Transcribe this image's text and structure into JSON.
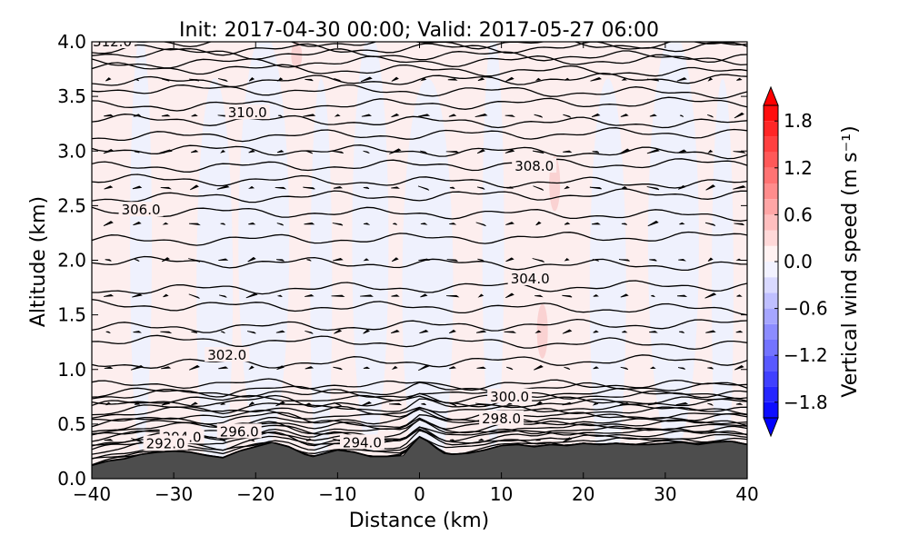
{
  "chart_data": {
    "type": "contour",
    "title": "Init: 2017-04-30 00:00; Valid: 2017-05-27 06:00",
    "xlabel": "Distance (km)",
    "ylabel": "Altitude (km)",
    "xlim": [
      -40,
      40
    ],
    "ylim": [
      0.0,
      4.0
    ],
    "x_ticks": [
      "−40",
      "−30",
      "−20",
      "−10",
      "0",
      "10",
      "20",
      "30",
      "40"
    ],
    "y_ticks": [
      "0.0",
      "0.5",
      "1.0",
      "1.5",
      "2.0",
      "2.5",
      "3.0",
      "3.5",
      "4.0"
    ],
    "colorbar": {
      "label": "Vertical wind speed (m s⁻¹)",
      "range": [
        -2.0,
        2.0
      ],
      "tick_values": [
        1.8,
        1.2,
        0.6,
        0.0,
        -0.6,
        -1.2,
        -1.8
      ],
      "tick_labels": [
        "1.8",
        "1.2",
        "0.6",
        "0.0",
        "−0.6",
        "−1.2",
        "−1.8"
      ],
      "colormap": "bwr",
      "extend": "both"
    },
    "terrain": {
      "color": "#4d4d4d",
      "x": [
        -40,
        -38,
        -36,
        -34,
        -32,
        -30,
        -28,
        -26,
        -24,
        -22,
        -20,
        -18,
        -16,
        -14,
        -13,
        -12,
        -10,
        -8,
        -6,
        -4,
        -2,
        -1,
        0,
        1,
        2,
        3,
        4,
        6,
        8,
        10,
        12,
        14,
        16,
        18,
        20,
        22,
        24,
        26,
        28,
        30,
        32,
        34,
        36,
        38,
        40
      ],
      "altitude": [
        0.12,
        0.16,
        0.18,
        0.22,
        0.24,
        0.25,
        0.24,
        0.21,
        0.19,
        0.25,
        0.29,
        0.33,
        0.29,
        0.22,
        0.2,
        0.22,
        0.26,
        0.24,
        0.2,
        0.2,
        0.21,
        0.3,
        0.38,
        0.34,
        0.28,
        0.23,
        0.22,
        0.23,
        0.26,
        0.3,
        0.31,
        0.29,
        0.31,
        0.3,
        0.32,
        0.31,
        0.32,
        0.31,
        0.31,
        0.32,
        0.33,
        0.31,
        0.33,
        0.34,
        0.31
      ]
    },
    "contours": {
      "variable": "potential temperature",
      "levels": [
        290.0,
        290.5,
        291.0,
        291.5,
        292.0,
        292.5,
        293.0,
        293.5,
        294.0,
        294.5,
        295.0,
        295.5,
        296.0,
        296.5,
        297.0,
        297.5,
        298.0,
        298.5,
        299.0,
        299.5,
        300.0,
        301.0,
        302.0,
        302.5,
        303.0,
        303.5,
        304.0,
        304.5,
        305.0,
        305.5,
        306.0,
        306.5,
        307.0,
        307.5,
        308.0,
        308.5,
        309.0,
        309.5,
        310.0,
        310.5,
        311.0,
        311.5,
        312.0
      ],
      "level_altitude_km": [
        0.17,
        0.2,
        0.23,
        0.26,
        0.29,
        0.32,
        0.35,
        0.37,
        0.4,
        0.43,
        0.46,
        0.49,
        0.52,
        0.56,
        0.6,
        0.64,
        0.68,
        0.72,
        0.76,
        0.8,
        0.85,
        1.07,
        1.25,
        1.4,
        1.57,
        1.75,
        1.97,
        2.2,
        2.43,
        2.59,
        2.72,
        2.87,
        3.0,
        3.15,
        3.27,
        3.43,
        3.55,
        3.65,
        3.74,
        3.82,
        3.88,
        3.94,
        3.99
      ],
      "labels": [
        {
          "text": "312.0",
          "x": -37.5,
          "y": 4.0
        },
        {
          "text": "310.0",
          "x": -21.0,
          "y": 3.35
        },
        {
          "text": "308.0",
          "x": 14.0,
          "y": 2.86
        },
        {
          "text": "306.0",
          "x": -34.0,
          "y": 2.46
        },
        {
          "text": "304.0",
          "x": 13.5,
          "y": 1.83
        },
        {
          "text": "302.0",
          "x": -23.5,
          "y": 1.13
        },
        {
          "text": "300.0",
          "x": 11.0,
          "y": 0.75
        },
        {
          "text": "298.0",
          "x": 10.0,
          "y": 0.55
        },
        {
          "text": "296.0",
          "x": -22.0,
          "y": 0.43
        },
        {
          "text": "294.0",
          "x": -29.0,
          "y": 0.38
        },
        {
          "text": "294.0",
          "x": -7.0,
          "y": 0.33
        },
        {
          "text": "292.0",
          "x": -31.0,
          "y": 0.32
        }
      ]
    },
    "vertical_wind_field": {
      "background": "weak positive (light red) with alternating weak negative (light blue) vertical bands",
      "negative_bands_x": [
        -34,
        -25,
        -19,
        -12,
        -6,
        1,
        9,
        23,
        31,
        37
      ],
      "positive_spots": [
        {
          "x": 16.5,
          "y_range": [
            2.45,
            2.95
          ],
          "value": 0.4
        },
        {
          "x": 15.0,
          "y_range": [
            1.1,
            1.6
          ],
          "value": 0.3
        },
        {
          "x": -15.0,
          "y_range": [
            3.75,
            4.0
          ],
          "value": 0.3
        }
      ]
    },
    "wind_barbs": "small black wind-direction markers on a regular grid"
  }
}
